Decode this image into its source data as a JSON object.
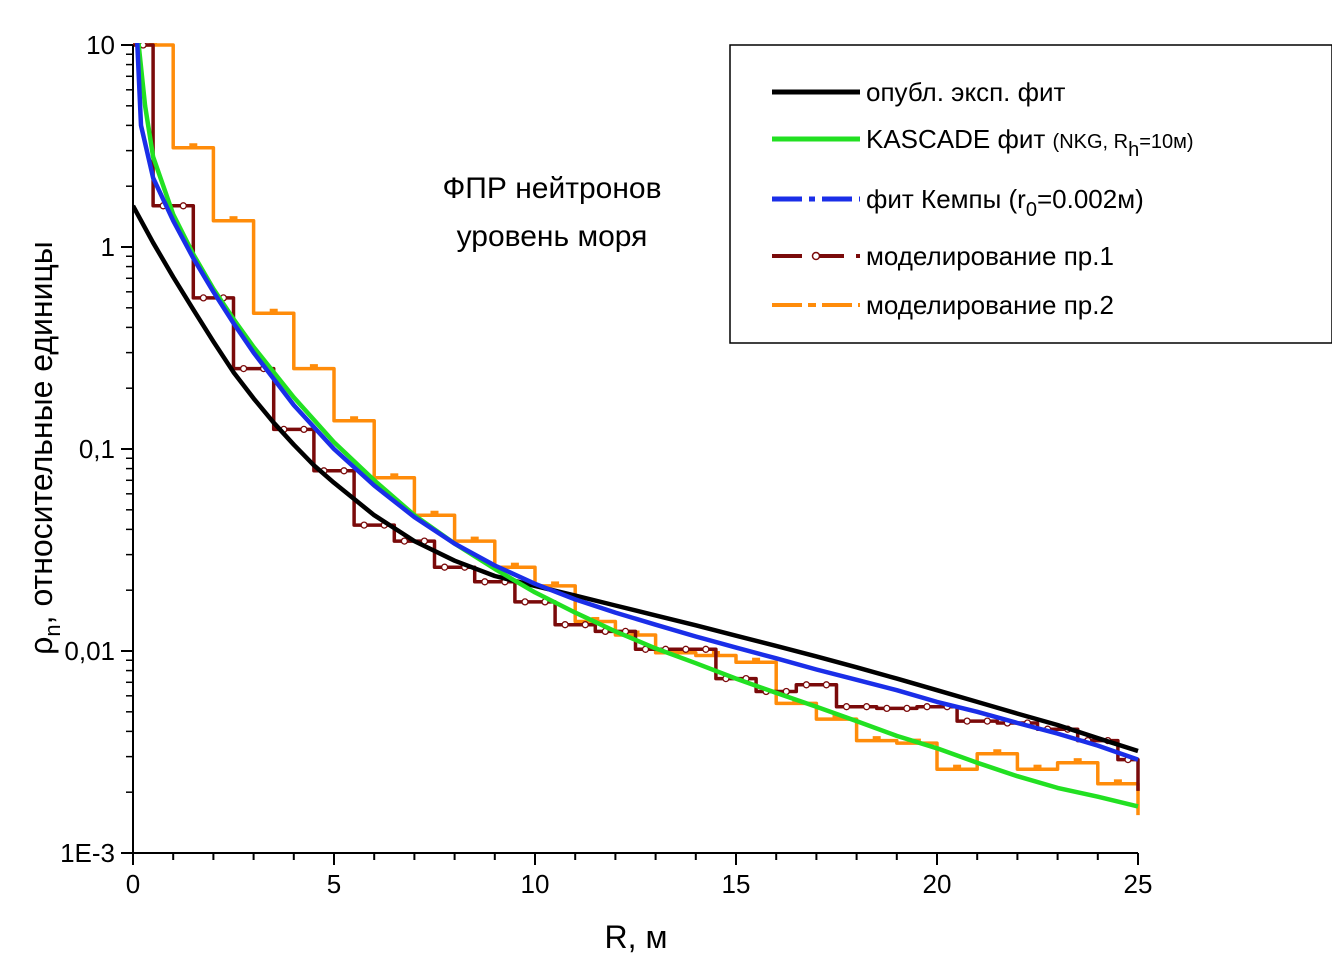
{
  "chart_data": {
    "type": "line",
    "xlabel": "R, м",
    "ylabel_main": "ρ",
    "ylabel_sub": "n",
    "ylabel_rest": ", относительные единицы",
    "annotation": [
      "ФПР нейтронов",
      "уровень моря"
    ],
    "xlim": [
      0,
      25
    ],
    "ylim": [
      0.001,
      10
    ],
    "yscale": "log",
    "xticks": [
      {
        "value": 0,
        "label": "0"
      },
      {
        "value": 5,
        "label": "5"
      },
      {
        "value": 10,
        "label": "10"
      },
      {
        "value": 15,
        "label": "15"
      },
      {
        "value": 20,
        "label": "20"
      },
      {
        "value": 25,
        "label": "25"
      }
    ],
    "yticks": [
      {
        "value": 10,
        "label": "10"
      },
      {
        "value": 1,
        "label": "1"
      },
      {
        "value": 0.1,
        "label": "0,1"
      },
      {
        "value": 0.01,
        "label": "0,01"
      },
      {
        "value": 0.001,
        "label": "1E-3"
      }
    ],
    "legend_position": "top-right",
    "legend": [
      {
        "parts": [
          "опубл. эксп. фит"
        ]
      },
      {
        "parts": [
          "KASCADE фит ",
          "(NKG, R",
          "h",
          "=10м)"
        ]
      },
      {
        "parts": [
          "фит Кемпы (r",
          "0",
          "=0.002м)"
        ]
      },
      {
        "parts": [
          "моделирование пр.1"
        ]
      },
      {
        "parts": [
          "моделирование пр.2"
        ]
      }
    ],
    "colors": {
      "exp_fit": "#000000",
      "kascade": "#22e022",
      "kempa": "#1a2ee8",
      "sim1": "#7a0a0a",
      "sim2": "#ff8c0a"
    },
    "series": [
      {
        "key": "exp_fit",
        "style": "line",
        "x": [
          0,
          0.5,
          1,
          1.5,
          2,
          2.5,
          3,
          3.5,
          4,
          4.5,
          5,
          6,
          7,
          8,
          9,
          10,
          11,
          12,
          13,
          14,
          15,
          16,
          17,
          18,
          19,
          20,
          21,
          22,
          23,
          24,
          25
        ],
        "y": [
          1.6,
          1.05,
          0.71,
          0.49,
          0.34,
          0.24,
          0.178,
          0.135,
          0.105,
          0.083,
          0.068,
          0.047,
          0.035,
          0.028,
          0.0235,
          0.021,
          0.0188,
          0.0168,
          0.015,
          0.0134,
          0.0119,
          0.0106,
          0.0094,
          0.0083,
          0.0073,
          0.0064,
          0.0056,
          0.0049,
          0.0043,
          0.0037,
          0.0032
        ]
      },
      {
        "key": "kascade",
        "style": "line",
        "x": [
          0.1,
          0.3,
          0.5,
          1,
          1.5,
          2,
          2.5,
          3,
          4,
          5,
          6,
          7,
          8,
          9,
          10,
          11,
          12,
          13,
          14,
          15,
          16,
          17,
          18,
          19,
          20,
          21,
          22,
          23,
          24,
          25
        ],
        "y": [
          12,
          5,
          2.8,
          1.45,
          0.92,
          0.62,
          0.44,
          0.32,
          0.18,
          0.108,
          0.07,
          0.047,
          0.034,
          0.0255,
          0.0195,
          0.0155,
          0.0125,
          0.0103,
          0.0087,
          0.0073,
          0.0062,
          0.0053,
          0.0045,
          0.0038,
          0.0033,
          0.0028,
          0.0024,
          0.0021,
          0.0019,
          0.0017
        ]
      },
      {
        "key": "kempa",
        "style": "line",
        "x": [
          0.1,
          0.2,
          0.5,
          1,
          1.5,
          2,
          2.5,
          3,
          4,
          5,
          6,
          7,
          8,
          9,
          10,
          11,
          12,
          13,
          14,
          15,
          16,
          17,
          18,
          19,
          20,
          21,
          22,
          23,
          24,
          25
        ],
        "y": [
          11,
          4,
          2.2,
          1.35,
          0.88,
          0.6,
          0.42,
          0.3,
          0.165,
          0.1,
          0.066,
          0.046,
          0.034,
          0.0265,
          0.0215,
          0.018,
          0.0155,
          0.0135,
          0.0118,
          0.0104,
          0.0092,
          0.0081,
          0.0072,
          0.0064,
          0.0056,
          0.005,
          0.0044,
          0.0039,
          0.0034,
          0.0029
        ]
      },
      {
        "key": "sim1",
        "style": "step",
        "marker": "circle",
        "bin_width": 0.5,
        "x": [
          0.25,
          0.75,
          1.25,
          1.75,
          2.25,
          2.75,
          3.25,
          3.75,
          4.25,
          4.75,
          5.25,
          5.75,
          6.25,
          6.75,
          7.25,
          7.75,
          8.25,
          8.75,
          9.25,
          9.75,
          10.25,
          10.75,
          11.25,
          11.75,
          12.25,
          12.75,
          13.25,
          13.75,
          14.25,
          14.75,
          15.25,
          15.75,
          16.25,
          16.75,
          17.25,
          17.75,
          18.25,
          18.75,
          19.25,
          19.75,
          20.25,
          20.75,
          21.25,
          21.75,
          22.25,
          22.75,
          23.25,
          23.75,
          24.25,
          24.75
        ],
        "y": [
          10,
          1.6,
          1.6,
          0.56,
          0.56,
          0.25,
          0.25,
          0.125,
          0.125,
          0.078,
          0.078,
          0.042,
          0.042,
          0.035,
          0.035,
          0.026,
          0.026,
          0.022,
          0.022,
          0.0175,
          0.0175,
          0.0135,
          0.0135,
          0.0125,
          0.0125,
          0.0102,
          0.0102,
          0.0102,
          0.0102,
          0.0073,
          0.0073,
          0.0063,
          0.0063,
          0.0068,
          0.0068,
          0.0053,
          0.0053,
          0.0052,
          0.0052,
          0.0053,
          0.0053,
          0.0045,
          0.0045,
          0.0044,
          0.0044,
          0.0041,
          0.0041,
          0.0036,
          0.0036,
          0.0029
        ]
      },
      {
        "key": "sim2",
        "style": "step",
        "marker": "dash",
        "bin_width": 1,
        "x": [
          0.5,
          1.5,
          2.5,
          3.5,
          4.5,
          5.5,
          6.5,
          7.5,
          8.5,
          9.5,
          10.5,
          11.5,
          12.5,
          13.5,
          14.5,
          15.5,
          16.5,
          17.5,
          18.5,
          19.5,
          20.5,
          21.5,
          22.5,
          23.5,
          24.5
        ],
        "y": [
          10,
          3.1,
          1.35,
          0.47,
          0.25,
          0.138,
          0.072,
          0.047,
          0.035,
          0.026,
          0.021,
          0.014,
          0.012,
          0.0098,
          0.0095,
          0.0088,
          0.0055,
          0.0046,
          0.0036,
          0.0035,
          0.0026,
          0.0031,
          0.0026,
          0.0028,
          0.0022
        ]
      }
    ]
  }
}
